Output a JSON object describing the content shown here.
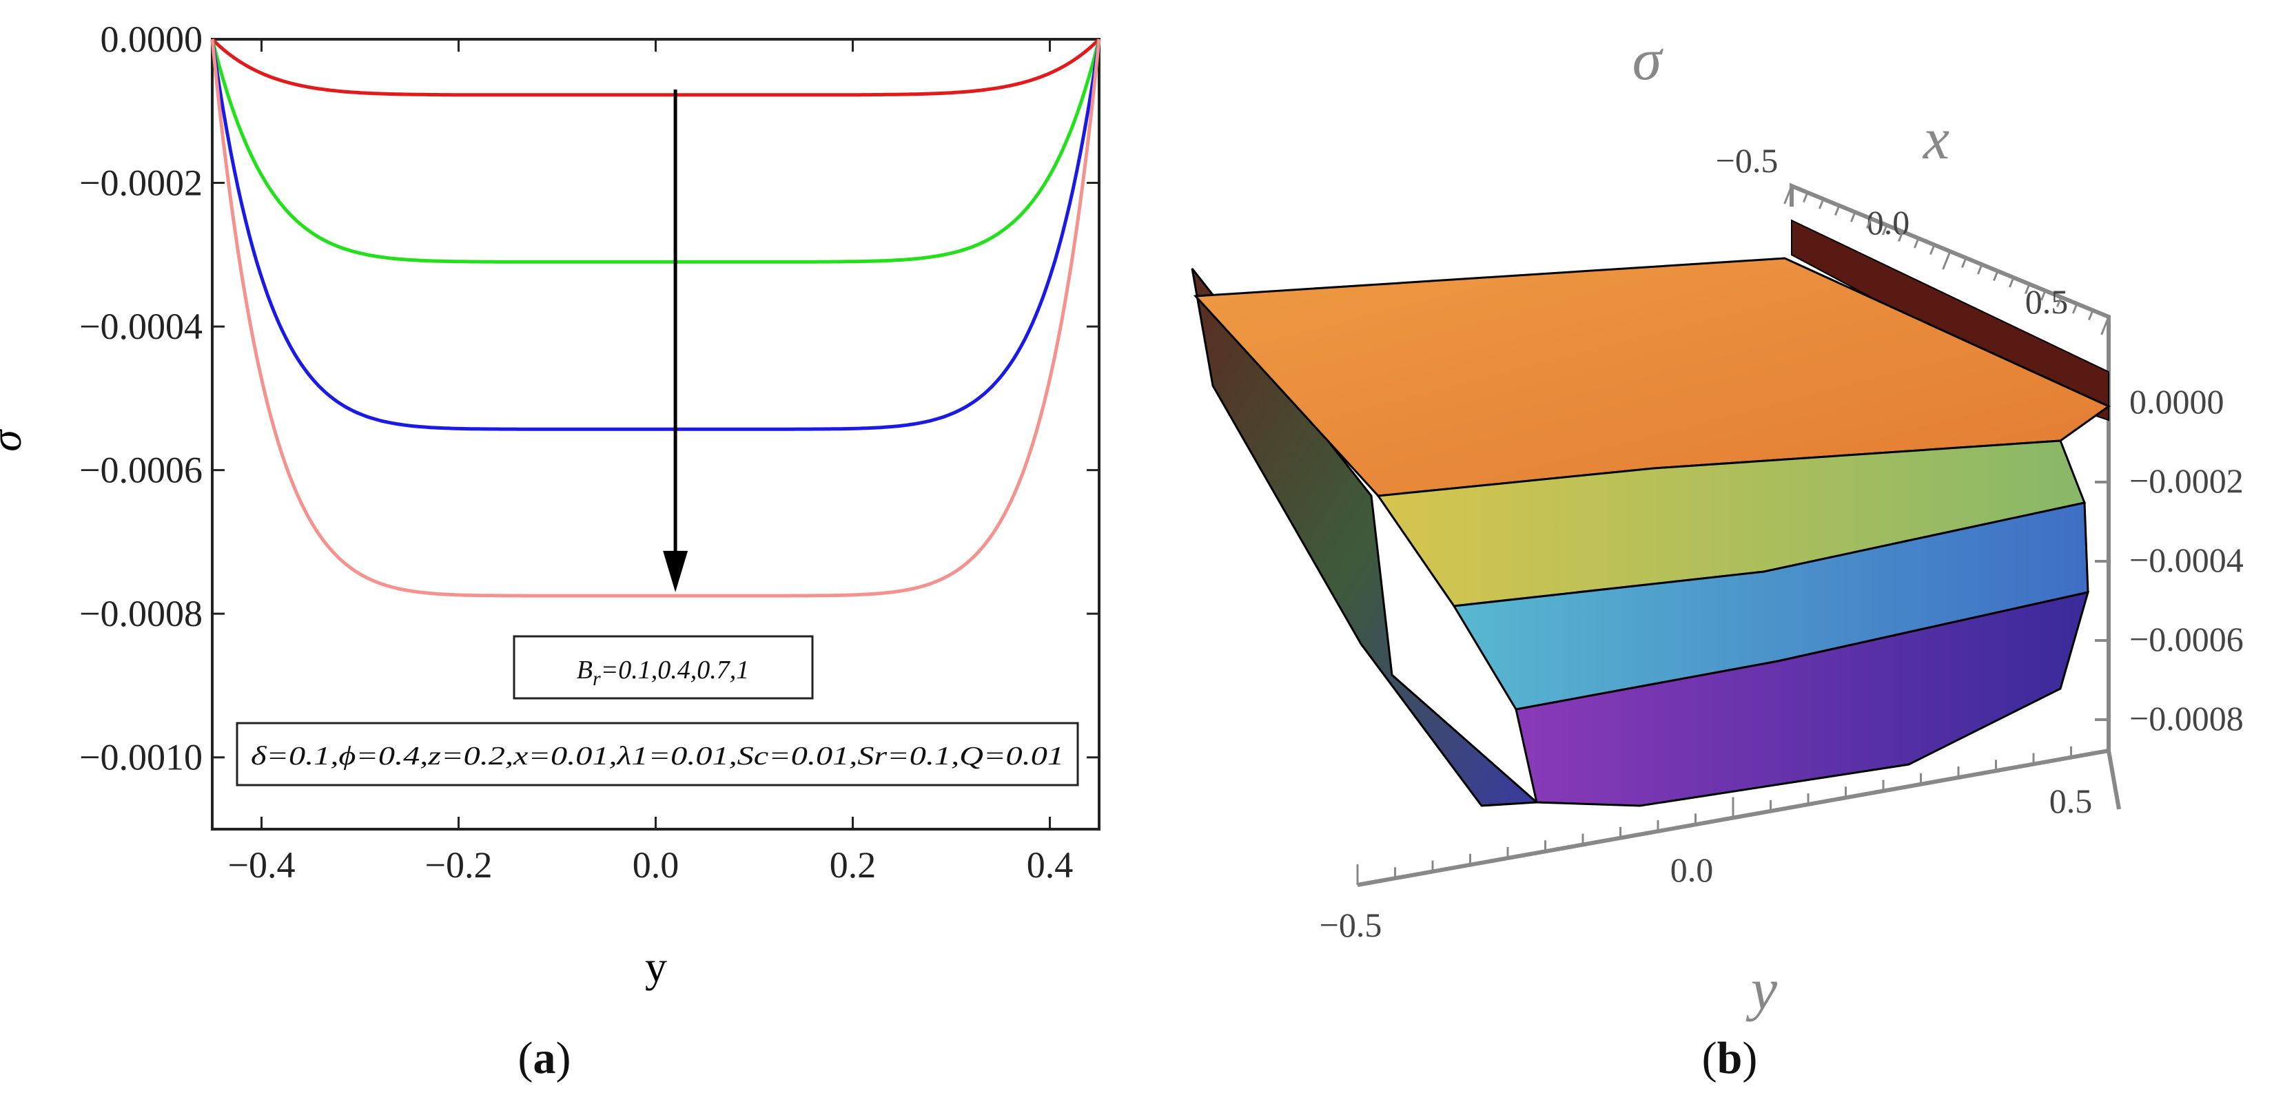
{
  "chart_data": [
    {
      "panel": "a",
      "type": "line",
      "xlabel": "y",
      "ylabel": "σ",
      "xlim": [
        -0.45,
        0.45
      ],
      "ylim": [
        -0.0011,
        0.0
      ],
      "xticks": [
        -0.4,
        -0.2,
        0.0,
        0.2,
        0.4
      ],
      "xtick_labels": [
        "−0.4",
        "−0.2",
        "0.0",
        "0.2",
        "0.4"
      ],
      "yticks": [
        0.0,
        -0.0002,
        -0.0004,
        -0.0006,
        -0.0008,
        -0.001
      ],
      "ytick_labels": [
        "0.0000",
        "−0.0002",
        "−0.0004",
        "−0.0006",
        "−0.0008",
        "−0.0010"
      ],
      "series": [
        {
          "color": "#e41a1a",
          "min_value": -7.75e-05,
          "values_at_x": {
            "x": [
              -0.45,
              -0.3,
              -0.1,
              0.0,
              0.1,
              0.3,
              0.45
            ],
            "y": [
              0.0,
              -7.12e-05,
              -7.75e-05,
              -7.75e-05,
              -7.75e-05,
              -7.12e-05,
              0.0
            ]
          }
        },
        {
          "color": "#22e01a",
          "min_value": -0.00031,
          "values_at_x": {
            "x": [
              -0.45,
              -0.3,
              -0.1,
              0.0,
              0.1,
              0.3,
              0.45
            ],
            "y": [
              0.0,
              -0.000285,
              -0.00031,
              -0.00031,
              -0.00031,
              -0.000285,
              0.0
            ]
          }
        },
        {
          "color": "#1a1ae6",
          "min_value": -0.000543,
          "values_at_x": {
            "x": [
              -0.45,
              -0.3,
              -0.1,
              0.0,
              0.1,
              0.3,
              0.45
            ],
            "y": [
              0.0,
              -0.0005,
              -0.000543,
              -0.000543,
              -0.000543,
              -0.0005,
              0.0
            ]
          }
        },
        {
          "color": "#f4928e",
          "min_value": -0.000775,
          "values_at_x": {
            "x": [
              -0.45,
              -0.3,
              -0.1,
              0.0,
              0.1,
              0.3,
              0.45
            ],
            "y": [
              0.0,
              -0.000712,
              -0.000775,
              -0.000775,
              -0.000775,
              -0.000712,
              0.0
            ]
          }
        }
      ],
      "annotation_arrow": {
        "x": 0.02,
        "from_y": -7e-05,
        "to_y": -0.00077
      },
      "legend_box_1": {
        "lead": "B",
        "sub": "r",
        "rest": "=0.1,0.4,0.7,1"
      },
      "legend_box_2": "δ=0.1,ϕ=0.4,z=0.2,x=0.01,λ1=0.01,Sc=0.01,Sr=0.1,Q=0.01",
      "label": "(a)"
    },
    {
      "panel": "b",
      "type": "surface3d",
      "zlabel": "σ",
      "xlabel": "x",
      "ylabel": "y",
      "x_ticks": [
        "−0.5",
        "0.0",
        "0.5"
      ],
      "y_ticks": [
        "−0.5",
        "0.0",
        "0.5"
      ],
      "z_ticks": [
        "0.0000",
        "−0.0002",
        "−0.0004",
        "−0.0006",
        "−0.0008"
      ],
      "zlim": [
        -0.0008,
        0.0
      ],
      "colors": [
        "#e8923a",
        "#9ac25a",
        "#4a88c8",
        "#7a2aa8"
      ],
      "label": "(b)"
    }
  ]
}
